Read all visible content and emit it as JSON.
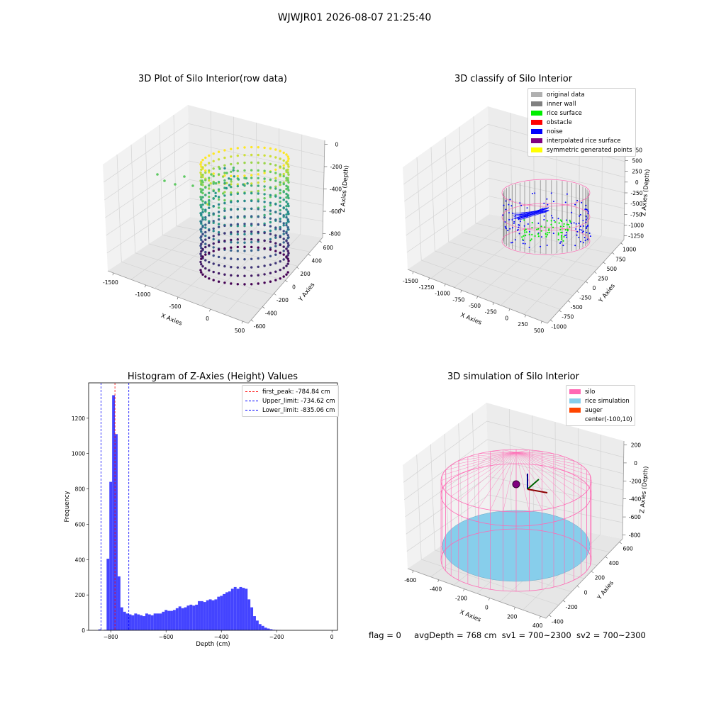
{
  "suptitle": "WJWJR01 2026-08-07 21:25:40",
  "status": {
    "flag": "flag = 0",
    "avg_depth": "avgDepth = 768 cm",
    "sv1": "sv1 = 700~2300",
    "sv2": "sv2 = 700~2300"
  },
  "colors": {
    "original_data": "#b0b0b0",
    "inner_wall": "#808080",
    "rice_surface": "#00ee00",
    "obstacle": "#ff0000",
    "noise": "#0000ff",
    "interpolated": "#800080",
    "symmetric": "#ffff00",
    "silo": "#ff69b4",
    "rice_simulation": "#87ceeb",
    "auger": "#ff4500",
    "hist_bar": "#4444ff"
  },
  "chart_data": [
    {
      "type": "scatter",
      "projection": "3d",
      "title": "3D Plot of Silo Interior(row data)",
      "xlabel": "X Axies",
      "ylabel": "Y Axies",
      "zlabel": "Z Axies (Depth)",
      "x_ticks": [
        "-1500",
        "-1000",
        "-500",
        "0",
        "500"
      ],
      "y_ticks": [
        "-600",
        "-400",
        "-200",
        "0",
        "200",
        "400",
        "600"
      ],
      "z_ticks": [
        "0",
        "-200",
        "-400",
        "-600",
        "-800"
      ],
      "colormap": "viridis"
    },
    {
      "type": "scatter",
      "projection": "3d",
      "title": "3D classify of Silo Interior",
      "xlabel": "X Axies",
      "ylabel": "Y Axies",
      "zlabel": "Z Axies (Depth)",
      "x_ticks": [
        "-1500",
        "-1250",
        "-1000",
        "-750",
        "-500",
        "-250",
        "0",
        "250",
        "500"
      ],
      "y_ticks": [
        "-1000",
        "-750",
        "-500",
        "-250",
        "0",
        "250",
        "500",
        "750",
        "1000"
      ],
      "z_ticks": [
        "750",
        "500",
        "250",
        "0",
        "-250",
        "-500",
        "-750",
        "-1000",
        "-1250"
      ],
      "legend": [
        "original data",
        "inner wall",
        "rice surface",
        "obstacle",
        "noise",
        "interpolated rice surface",
        "symmetric generated points"
      ],
      "legend_placement": "top-right"
    },
    {
      "type": "bar",
      "title": "Histogram of Z-Axies (Height) Values",
      "xlabel": "Depth (cm)",
      "ylabel": "Frequency",
      "xlim": [
        -880,
        20
      ],
      "ylim": [
        0,
        1400
      ],
      "x_ticks": [
        "−800",
        "−600",
        "−400",
        "−200",
        "0"
      ],
      "x_tick_values": [
        -800,
        -600,
        -400,
        -200,
        0
      ],
      "y_ticks": [
        "0",
        "200",
        "400",
        "600",
        "800",
        "1000",
        "1200"
      ],
      "y_tick_values": [
        0,
        200,
        400,
        600,
        800,
        1000,
        1200
      ],
      "bin_edges": [
        -845,
        -835,
        -825,
        -815,
        -805,
        -795,
        -785,
        -775,
        -765,
        -755,
        -745,
        -735,
        -725,
        -715,
        -705,
        -695,
        -685,
        -675,
        -665,
        -655,
        -645,
        -635,
        -625,
        -615,
        -605,
        -595,
        -585,
        -575,
        -565,
        -555,
        -545,
        -535,
        -525,
        -515,
        -505,
        -495,
        -485,
        -475,
        -465,
        -455,
        -445,
        -435,
        -425,
        -415,
        -405,
        -395,
        -385,
        -375,
        -365,
        -355,
        -345,
        -335,
        -325,
        -315,
        -305,
        -295,
        -285,
        -275,
        -265,
        -255,
        -245,
        -235,
        -225,
        -215,
        -205,
        -195,
        -185,
        -175,
        -165,
        -155,
        -145,
        -135,
        -125,
        -115,
        -105,
        -95,
        -85,
        -75,
        -65,
        -55,
        -45,
        -35,
        -25,
        -15,
        -5
      ],
      "values": [
        5,
        0,
        3,
        405,
        840,
        1330,
        1110,
        305,
        130,
        105,
        95,
        90,
        85,
        95,
        90,
        85,
        80,
        95,
        90,
        85,
        95,
        95,
        95,
        105,
        115,
        110,
        110,
        115,
        125,
        135,
        125,
        130,
        140,
        145,
        140,
        145,
        165,
        165,
        160,
        170,
        175,
        170,
        175,
        190,
        195,
        205,
        215,
        220,
        235,
        245,
        235,
        245,
        240,
        235,
        175,
        130,
        80,
        55,
        35,
        25,
        15,
        10,
        6,
        3,
        2,
        1,
        0,
        0,
        0,
        0,
        0,
        0,
        0,
        0,
        0,
        0,
        0,
        0,
        0,
        0,
        0,
        0,
        0,
        0
      ],
      "vlines": [
        {
          "label": "first_peak: -784.84 cm",
          "x": -784.84,
          "color": "#ff0000"
        },
        {
          "label": "Upper_limit: -734.62 cm",
          "x": -734.62,
          "color": "#0000ff"
        },
        {
          "label": "Lower_limit: -835.06 cm",
          "x": -835.06,
          "color": "#0000ff"
        }
      ],
      "legend_placement": "top-right"
    },
    {
      "type": "scatter",
      "projection": "3d",
      "title": "3D simulation of Silo Interior",
      "xlabel": "X Axies",
      "ylabel": "Y Axies",
      "zlabel": "Z Axies (Depth)",
      "x_ticks": [
        "-600",
        "-400",
        "-200",
        "0",
        "200",
        "400"
      ],
      "y_ticks": [
        "-400",
        "-200",
        "0",
        "200",
        "400",
        "600"
      ],
      "z_ticks": [
        "200",
        "0",
        "-200",
        "-400",
        "-600",
        "-800"
      ],
      "legend": [
        "silo",
        "rice simulation",
        "auger",
        "center(-100,10)"
      ],
      "legend_placement": "top-right"
    }
  ]
}
